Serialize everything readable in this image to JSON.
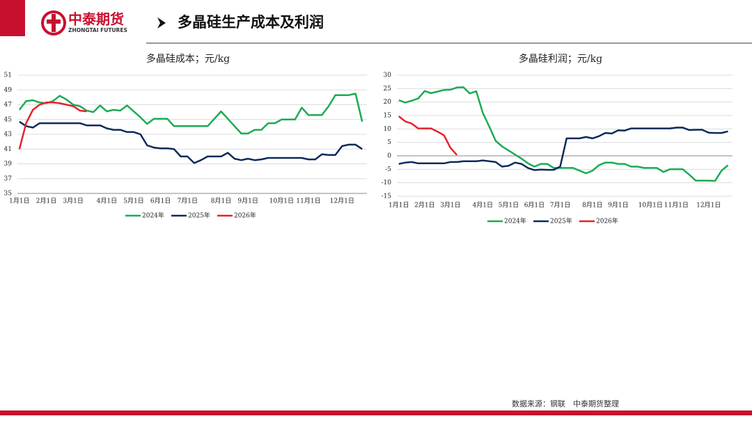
{
  "header": {
    "logo_cn": "中泰期货",
    "logo_en": "ZHONGTAI FUTURES",
    "title": "多晶硅生产成本及利润"
  },
  "footer": {
    "source": "数据来源：钢联　中泰期货整理"
  },
  "chart_data": [
    {
      "type": "line",
      "title": "多晶硅成本；元/kg",
      "categories": [
        "1月1日",
        null,
        null,
        null,
        "2月1日",
        null,
        null,
        null,
        "3月1日",
        null,
        null,
        null,
        null,
        "4月1日",
        null,
        null,
        null,
        "5月1日",
        null,
        null,
        null,
        "6月1日",
        null,
        null,
        null,
        "7月1日",
        null,
        null,
        null,
        null,
        "8月1日",
        null,
        null,
        null,
        "9月1日",
        null,
        null,
        null,
        null,
        "10月1日",
        null,
        null,
        null,
        "11月1日",
        null,
        null,
        null,
        null,
        "12月1日",
        null,
        null,
        null
      ],
      "ylim": [
        35,
        51
      ],
      "yticks": [
        35,
        37,
        39,
        41,
        43,
        45,
        47,
        49,
        51
      ],
      "grid": true,
      "series": [
        {
          "name": "2024年",
          "color": "#1aab55",
          "values": [
            46.3,
            47.5,
            47.6,
            47.3,
            47.2,
            47.5,
            48.2,
            47.7,
            47.0,
            46.8,
            46.2,
            46.0,
            46.9,
            46.1,
            46.3,
            46.2,
            46.9,
            46.1,
            45.3,
            44.4,
            45.1,
            45.1,
            45.1,
            44.1,
            44.1,
            44.1,
            44.1,
            44.1,
            44.1,
            45.1,
            46.1,
            45.1,
            44.1,
            43.1,
            43.1,
            43.6,
            43.6,
            44.5,
            44.5,
            45.0,
            45.0,
            45.0,
            46.6,
            45.6,
            45.6,
            45.6,
            46.8,
            48.3,
            48.3,
            48.3,
            48.5,
            44.7
          ]
        },
        {
          "name": "2025年",
          "color": "#0c2a5a",
          "values": [
            44.7,
            44.1,
            43.9,
            44.5,
            44.5,
            44.5,
            44.5,
            44.5,
            44.5,
            44.5,
            44.2,
            44.2,
            44.2,
            43.8,
            43.6,
            43.6,
            43.3,
            43.3,
            43.0,
            41.5,
            41.2,
            41.1,
            41.1,
            41.0,
            40.0,
            40.0,
            39.1,
            39.5,
            40.0,
            40.0,
            40.0,
            40.5,
            39.7,
            39.5,
            39.7,
            39.5,
            39.6,
            39.8,
            39.8,
            39.8,
            39.8,
            39.8,
            39.8,
            39.6,
            39.6,
            40.3,
            40.2,
            40.2,
            41.4,
            41.6,
            41.6,
            41.0
          ]
        },
        {
          "name": "2026年",
          "color": "#e8202a",
          "values": [
            41.0,
            44.5,
            46.3,
            47.0,
            47.3,
            47.3,
            47.2,
            47.0,
            46.8,
            46.2,
            46.1,
            null,
            null,
            null,
            null,
            null,
            null,
            null,
            null,
            null,
            null,
            null,
            null,
            null,
            null,
            null,
            null,
            null,
            null,
            null,
            null,
            null,
            null,
            null,
            null,
            null,
            null,
            null,
            null,
            null,
            null,
            null,
            null,
            null,
            null,
            null,
            null,
            null,
            null,
            null,
            null,
            null
          ]
        }
      ]
    },
    {
      "type": "line",
      "title": "多晶硅利润；元/kg",
      "categories": [
        "1月1日",
        null,
        null,
        null,
        "2月1日",
        null,
        null,
        null,
        "3月1日",
        null,
        null,
        null,
        null,
        "4月1日",
        null,
        null,
        null,
        "5月1日",
        null,
        null,
        null,
        "6月1日",
        null,
        null,
        null,
        "7月1日",
        null,
        null,
        null,
        null,
        "8月1日",
        null,
        null,
        null,
        "9月1日",
        null,
        null,
        null,
        null,
        "10月1日",
        null,
        null,
        null,
        "11月1日",
        null,
        null,
        null,
        null,
        "12月1日",
        null,
        null,
        null
      ],
      "ylim": [
        -15,
        30
      ],
      "yticks": [
        -15,
        -10,
        -5,
        0,
        5,
        10,
        15,
        20,
        25,
        30
      ],
      "grid": true,
      "series": [
        {
          "name": "2024年",
          "color": "#1aab55",
          "values": [
            20.7,
            19.8,
            20.5,
            21.3,
            24.1,
            23.3,
            23.9,
            24.5,
            24.6,
            25.4,
            25.5,
            23.2,
            24.0,
            16.0,
            11.0,
            5.6,
            3.5,
            2.0,
            0.5,
            -1.0,
            -2.8,
            -4.0,
            -3.0,
            -3.0,
            -4.5,
            -4.5,
            -4.5,
            -4.5,
            -5.5,
            -6.5,
            -5.5,
            -3.5,
            -2.5,
            -2.5,
            -3.0,
            -3.0,
            -4.0,
            -4.0,
            -4.5,
            -4.5,
            -4.5,
            -6.0,
            -5.0,
            -5.0,
            -5.0,
            -7.0,
            -9.2,
            -9.2,
            -9.2,
            -9.3,
            -5.5,
            -3.5
          ]
        },
        {
          "name": "2025年",
          "color": "#0c2a5a",
          "values": [
            -3.0,
            -2.5,
            -2.3,
            -2.8,
            -2.8,
            -2.8,
            -2.8,
            -2.8,
            -2.3,
            -2.3,
            -2.0,
            -2.0,
            -2.0,
            -1.7,
            -2.0,
            -2.3,
            -4.0,
            -3.7,
            -2.5,
            -3.0,
            -4.5,
            -5.3,
            -5.1,
            -5.2,
            -5.2,
            -4.0,
            6.5,
            6.5,
            6.5,
            7.0,
            6.5,
            7.3,
            8.5,
            8.3,
            9.5,
            9.4,
            10.2,
            10.2,
            10.2,
            10.2,
            10.2,
            10.2,
            10.2,
            10.5,
            10.5,
            9.6,
            9.7,
            9.7,
            8.6,
            8.5,
            8.5,
            9.1
          ]
        },
        {
          "name": "2026年",
          "color": "#e8202a",
          "values": [
            14.7,
            12.8,
            12.0,
            10.2,
            10.2,
            10.2,
            9.0,
            7.6,
            3.0,
            0.3,
            null,
            null,
            null,
            null,
            null,
            null,
            null,
            null,
            null,
            null,
            null,
            null,
            null,
            null,
            null,
            null,
            null,
            null,
            null,
            null,
            null,
            null,
            null,
            null,
            null,
            null,
            null,
            null,
            null,
            null,
            null,
            null,
            null,
            null,
            null,
            null,
            null,
            null,
            null,
            null,
            null,
            null
          ]
        }
      ]
    }
  ]
}
